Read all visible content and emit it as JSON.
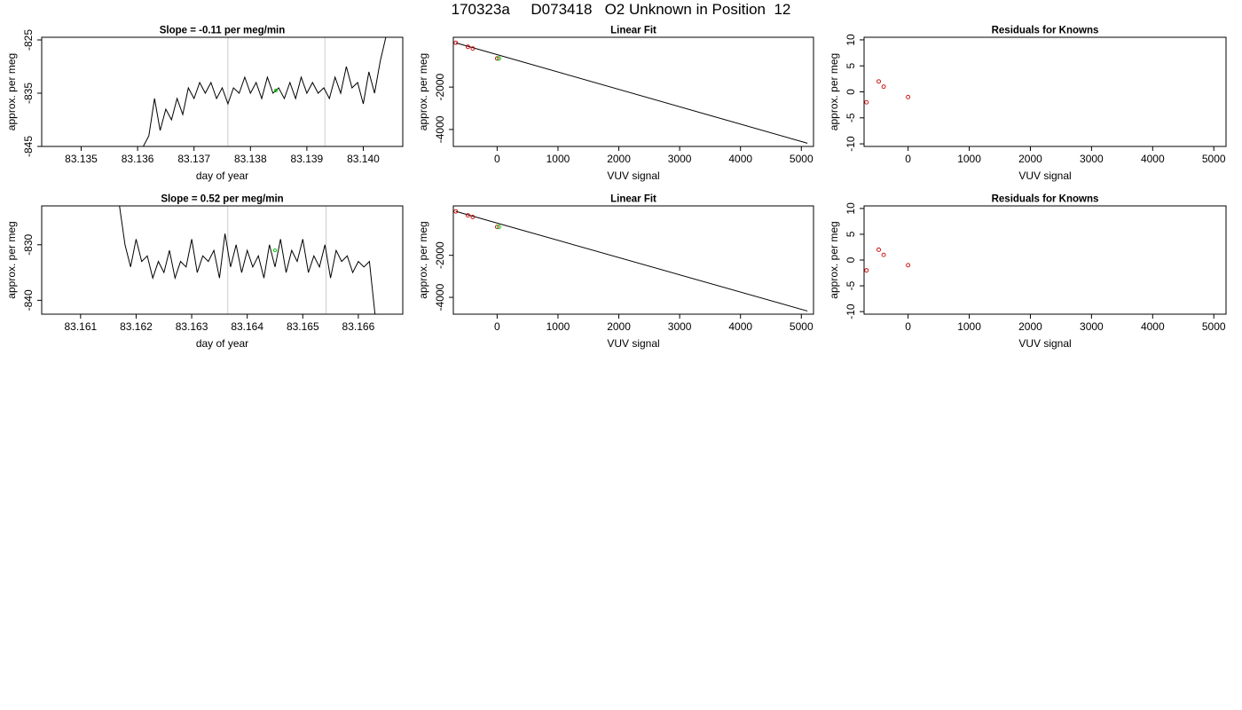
{
  "page": {
    "title": "170323a     D073418   O2 Unknown in Position  12"
  },
  "chart_data": [
    {
      "type": "line",
      "title": "Slope =  -0.11  per meg/min",
      "xlabel": "day of year",
      "ylabel": "approx. per meg",
      "xlim": [
        83.1343,
        83.1407
      ],
      "ylim": [
        -845,
        -824.5
      ],
      "xticks": [
        "83.135",
        "83.136",
        "83.137",
        "83.138",
        "83.139",
        "83.140"
      ],
      "xtick_values": [
        83.135,
        83.136,
        83.137,
        83.138,
        83.139,
        83.14
      ],
      "yticks": [
        "-845",
        "-835",
        "-825"
      ],
      "ytick_values": [
        -845,
        -835,
        -825
      ],
      "vlines": [
        83.1376,
        83.13932
      ],
      "marker": {
        "x": 83.13845,
        "y": -834.5,
        "color": "#00cc00"
      },
      "x": [
        83.1361,
        83.1362,
        83.1363,
        83.1364,
        83.1365,
        83.1366,
        83.1367,
        83.1368,
        83.1369,
        83.137,
        83.1371,
        83.1372,
        83.1373,
        83.1374,
        83.1375,
        83.1376,
        83.1377,
        83.1378,
        83.1379,
        83.138,
        83.1381,
        83.1382,
        83.1383,
        83.1384,
        83.1385,
        83.1386,
        83.1387,
        83.1388,
        83.1389,
        83.139,
        83.1391,
        83.1392,
        83.1393,
        83.1394,
        83.1395,
        83.1396,
        83.1397,
        83.1398,
        83.1399,
        83.14,
        83.1401,
        83.1402,
        83.1403,
        83.1404
      ],
      "y": [
        -845,
        -843,
        -836,
        -842,
        -838,
        -840,
        -836,
        -839,
        -834,
        -836,
        -833,
        -835,
        -833,
        -836,
        -834,
        -837,
        -834,
        -835,
        -832,
        -835,
        -833,
        -836,
        -832,
        -835,
        -834,
        -836,
        -833,
        -836,
        -832,
        -835,
        -833,
        -835,
        -834,
        -836,
        -832,
        -835,
        -830,
        -834,
        -833,
        -837,
        -831,
        -835,
        -829,
        -824.5
      ],
      "line_color": "#000000",
      "vline_color": "#cccccc"
    },
    {
      "type": "scatter",
      "title": "Linear Fit",
      "xlabel": "VUV signal",
      "ylabel": "approx. per meg",
      "xlim": [
        -720,
        5200
      ],
      "ylim": [
        -4800,
        350
      ],
      "xticks": [
        "0",
        "1000",
        "2000",
        "3000",
        "4000",
        "5000"
      ],
      "xtick_values": [
        0,
        1000,
        2000,
        3000,
        4000,
        5000
      ],
      "yticks": [
        "-4000",
        "-2000"
      ],
      "ytick_values": [
        -4000,
        -2000
      ],
      "fit_line": {
        "x": [
          -680,
          5100
        ],
        "y": [
          90,
          -4650
        ]
      },
      "known_points": {
        "x": [
          -680,
          -480,
          -400,
          0
        ],
        "y": [
          90,
          -100,
          -180,
          -650
        ]
      },
      "unknown_point": {
        "x": 30,
        "y": -650
      },
      "known_color": "#cc0000",
      "unknown_color": "#00cc00"
    },
    {
      "type": "scatter",
      "title": "Residuals for Knowns",
      "xlabel": "VUV signal",
      "ylabel": "approx. per meg",
      "xlim": [
        -720,
        5200
      ],
      "ylim": [
        -10.5,
        10.5
      ],
      "xticks": [
        "0",
        "1000",
        "2000",
        "3000",
        "4000",
        "5000"
      ],
      "xtick_values": [
        0,
        1000,
        2000,
        3000,
        4000,
        5000
      ],
      "yticks": [
        "-10",
        "-5",
        "0",
        "5",
        "10"
      ],
      "ytick_values": [
        -10,
        -5,
        0,
        5,
        10
      ],
      "points": {
        "x": [
          -680,
          -480,
          -400,
          0
        ],
        "y": [
          -2,
          2,
          1,
          -1
        ]
      },
      "color": "#cc0000"
    },
    {
      "type": "line",
      "title": "Slope =  0.52  per meg/min",
      "xlabel": "day of year",
      "ylabel": "approx. per meg",
      "xlim": [
        83.1603,
        83.1668
      ],
      "ylim": [
        -842.5,
        -823
      ],
      "xticks": [
        "83.161",
        "83.162",
        "83.163",
        "83.164",
        "83.165",
        "83.166"
      ],
      "xtick_values": [
        83.161,
        83.162,
        83.163,
        83.164,
        83.165,
        83.166
      ],
      "yticks": [
        "-840",
        "-830"
      ],
      "ytick_values": [
        -840,
        -830
      ],
      "vlines": [
        83.16365,
        83.16542
      ],
      "marker": {
        "x": 83.1645,
        "y": -831,
        "color": "#00cc00"
      },
      "x": [
        83.1617,
        83.1618,
        83.1619,
        83.162,
        83.1621,
        83.1622,
        83.1623,
        83.1624,
        83.1625,
        83.1626,
        83.1627,
        83.1628,
        83.1629,
        83.163,
        83.1631,
        83.1632,
        83.1633,
        83.1634,
        83.1635,
        83.1636,
        83.1637,
        83.1638,
        83.1639,
        83.164,
        83.1641,
        83.1642,
        83.1643,
        83.1644,
        83.1645,
        83.1646,
        83.1647,
        83.1648,
        83.1649,
        83.165,
        83.1651,
        83.1652,
        83.1653,
        83.1654,
        83.1655,
        83.1656,
        83.1657,
        83.1658,
        83.1659,
        83.166,
        83.1661,
        83.1662,
        83.1663
      ],
      "y": [
        -823,
        -830,
        -834,
        -829,
        -833,
        -832,
        -836,
        -833,
        -835,
        -831,
        -836,
        -833,
        -834,
        -829,
        -835,
        -832,
        -833,
        -831,
        -836,
        -828,
        -834,
        -830,
        -835,
        -831,
        -834,
        -832,
        -836,
        -830,
        -834,
        -829,
        -835,
        -831,
        -833,
        -829,
        -835,
        -832,
        -834,
        -830,
        -836,
        -831,
        -833,
        -832,
        -835,
        -833,
        -834,
        -833,
        -842.5
      ],
      "line_color": "#000000",
      "vline_color": "#cccccc"
    },
    {
      "type": "scatter",
      "title": "Linear Fit",
      "xlabel": "VUV signal",
      "ylabel": "approx. per meg",
      "xlim": [
        -720,
        5200
      ],
      "ylim": [
        -4800,
        350
      ],
      "xticks": [
        "0",
        "1000",
        "2000",
        "3000",
        "4000",
        "5000"
      ],
      "xtick_values": [
        0,
        1000,
        2000,
        3000,
        4000,
        5000
      ],
      "yticks": [
        "-4000",
        "-2000"
      ],
      "ytick_values": [
        -4000,
        -2000
      ],
      "fit_line": {
        "x": [
          -680,
          5100
        ],
        "y": [
          90,
          -4650
        ]
      },
      "known_points": {
        "x": [
          -680,
          -480,
          -400,
          0
        ],
        "y": [
          90,
          -100,
          -180,
          -650
        ]
      },
      "unknown_point": {
        "x": 30,
        "y": -650
      },
      "known_color": "#cc0000",
      "unknown_color": "#00cc00"
    },
    {
      "type": "scatter",
      "title": "Residuals for Knowns",
      "xlabel": "VUV signal",
      "ylabel": "approx. per meg",
      "xlim": [
        -720,
        5200
      ],
      "ylim": [
        -10.5,
        10.5
      ],
      "xticks": [
        "0",
        "1000",
        "2000",
        "3000",
        "4000",
        "5000"
      ],
      "xtick_values": [
        0,
        1000,
        2000,
        3000,
        4000,
        5000
      ],
      "yticks": [
        "-10",
        "-5",
        "0",
        "5",
        "10"
      ],
      "ytick_values": [
        -10,
        -5,
        0,
        5,
        10
      ],
      "points": {
        "x": [
          -680,
          -480,
          -400,
          0
        ],
        "y": [
          -2,
          2,
          1,
          -1
        ]
      },
      "color": "#cc0000"
    }
  ]
}
